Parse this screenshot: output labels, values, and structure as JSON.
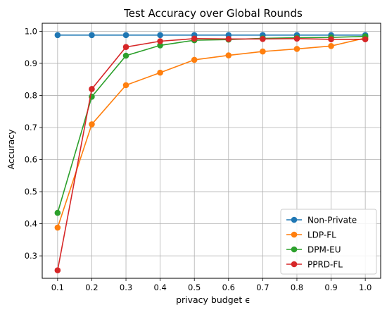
{
  "chart_data": {
    "type": "line",
    "title": "Test Accuracy over Global Rounds",
    "xlabel": "privacy budget ϵ",
    "ylabel": "Accuracy",
    "x": [
      0.1,
      0.2,
      0.3,
      0.4,
      0.5,
      0.6,
      0.7,
      0.8,
      0.9,
      1.0
    ],
    "x_tick_labels": [
      "0.1",
      "0.2",
      "0.3",
      "0.4",
      "0.5",
      "0.6",
      "0.7",
      "0.8",
      "0.9",
      "1.0"
    ],
    "y_ticks": [
      0.3,
      0.4,
      0.5,
      0.6,
      0.7,
      0.8,
      0.9,
      1.0
    ],
    "y_tick_labels": [
      "0.3",
      "0.4",
      "0.5",
      "0.6",
      "0.7",
      "0.8",
      "0.9",
      "1.0"
    ],
    "xlim": [
      0.055,
      1.045
    ],
    "ylim": [
      0.23,
      1.025
    ],
    "grid": true,
    "legend_position": "lower-right",
    "series": [
      {
        "name": "Non-Private",
        "color": "#1f77b4",
        "values": [
          0.988,
          0.988,
          0.988,
          0.988,
          0.988,
          0.988,
          0.988,
          0.988,
          0.988,
          0.988
        ]
      },
      {
        "name": "LDP-FL",
        "color": "#ff7f0e",
        "values": [
          0.388,
          0.71,
          0.832,
          0.871,
          0.911,
          0.925,
          0.937,
          0.945,
          0.954,
          0.979
        ]
      },
      {
        "name": "DPM-EU",
        "color": "#2ca02c",
        "values": [
          0.434,
          0.796,
          0.924,
          0.956,
          0.972,
          0.974,
          0.978,
          0.98,
          0.981,
          0.984
        ]
      },
      {
        "name": "PPRD-FL",
        "color": "#d62728",
        "values": [
          0.255,
          0.82,
          0.951,
          0.969,
          0.977,
          0.976,
          0.976,
          0.977,
          0.975,
          0.975
        ]
      }
    ]
  }
}
